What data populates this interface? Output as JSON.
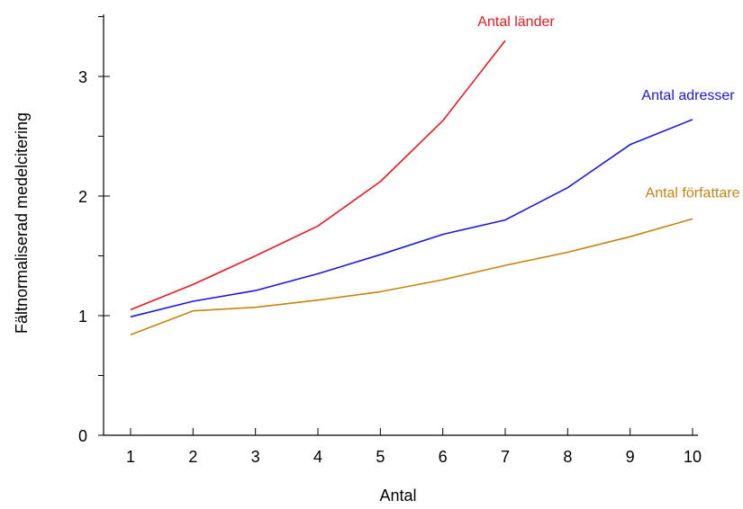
{
  "chart_data": {
    "type": "line",
    "xlabel": "Antal",
    "ylabel": "Fältnormaliserad medelcitering",
    "x": [
      1,
      2,
      3,
      4,
      5,
      6,
      7,
      8,
      9,
      10
    ],
    "xlim": [
      1,
      10
    ],
    "ylim": [
      0,
      3.5
    ],
    "x_ticks": [
      "1",
      "2",
      "3",
      "4",
      "5",
      "6",
      "7",
      "8",
      "9",
      "10"
    ],
    "y_ticks": [
      "0",
      "1",
      "2",
      "3"
    ],
    "y_tick_values": [
      0,
      1,
      2,
      3
    ],
    "y_minor_tick_values": [
      0.5,
      1.5,
      2.5,
      3.5
    ],
    "grid": false,
    "legend": "inline labels at line ends",
    "series": [
      {
        "name": "Antal länder",
        "color": "#e8191f",
        "x": [
          1,
          2,
          3,
          4,
          5,
          6,
          7
        ],
        "values": [
          1.05,
          1.26,
          1.5,
          1.75,
          2.12,
          2.63,
          3.3
        ]
      },
      {
        "name": "Antal adresser",
        "color": "#1a17e0",
        "x": [
          1,
          2,
          3,
          4,
          5,
          6,
          7,
          8,
          9,
          10
        ],
        "values": [
          0.99,
          1.12,
          1.21,
          1.35,
          1.51,
          1.68,
          1.8,
          2.07,
          2.43,
          2.64
        ]
      },
      {
        "name": "Antal författare",
        "color": "#c48412",
        "x": [
          1,
          2,
          3,
          4,
          5,
          6,
          7,
          8,
          9,
          10
        ],
        "values": [
          0.84,
          1.04,
          1.07,
          1.13,
          1.2,
          1.3,
          1.42,
          1.53,
          1.66,
          1.81
        ]
      }
    ]
  }
}
